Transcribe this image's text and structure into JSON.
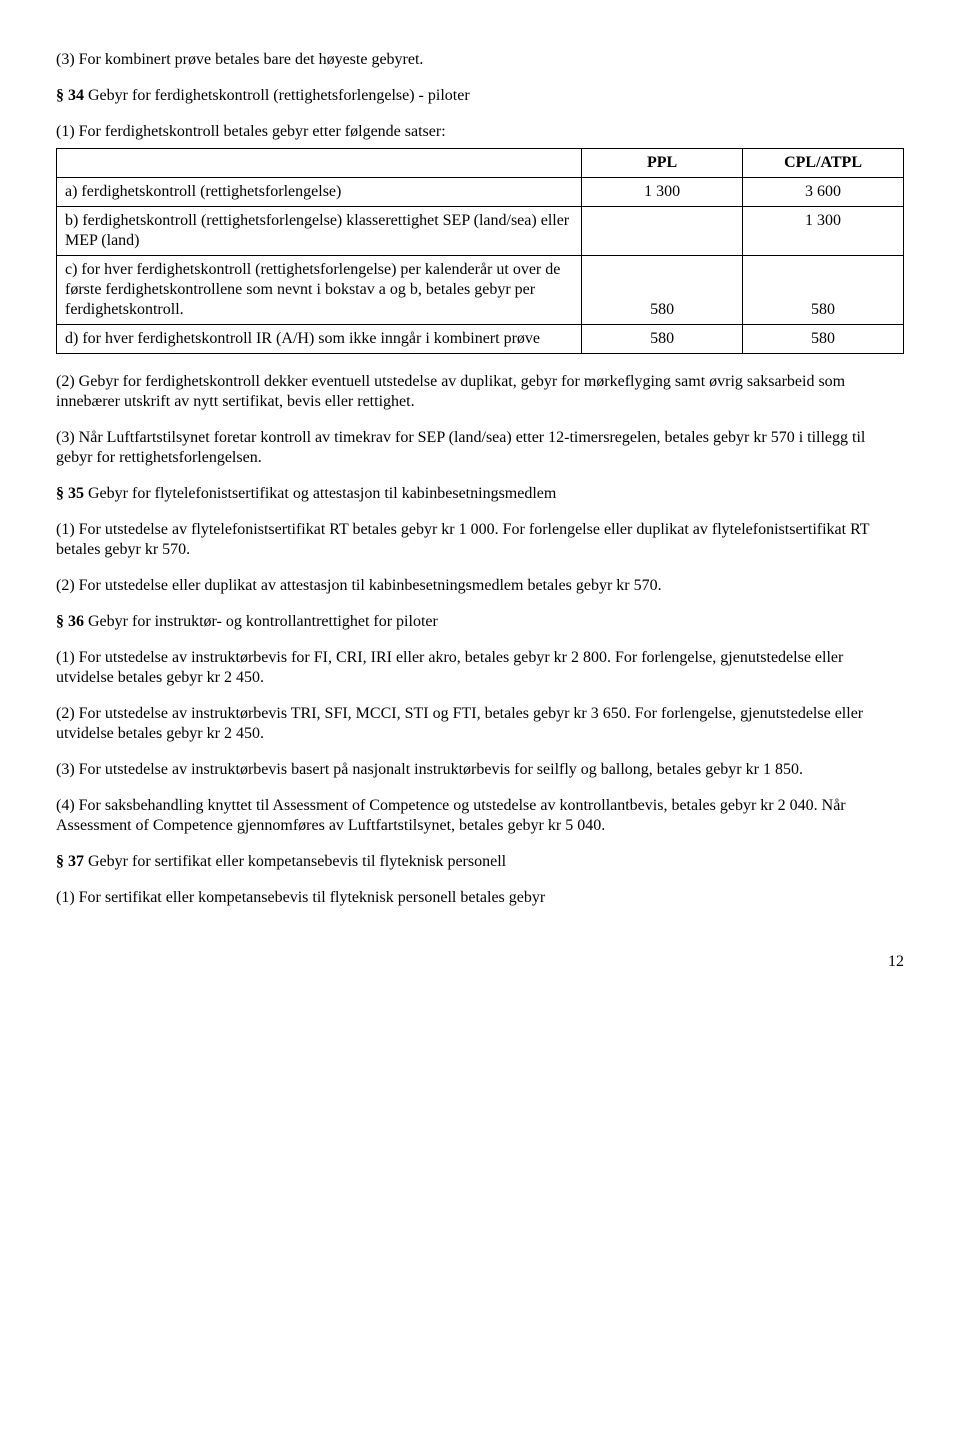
{
  "para_intro_3": "(3) For kombinert prøve betales bare det høyeste gebyret.",
  "s34": {
    "heading_prefix": "§ 34",
    "heading_rest": " Gebyr for ferdighetskontroll (rettighetsforlengelse) - piloter",
    "lead": "(1) For ferdighetskontroll betales gebyr etter følgende satser:",
    "table": {
      "col1_header": "PPL",
      "col2_header": "CPL/ATPL",
      "rows": [
        {
          "label": "a) ferdighetskontroll (rettighetsforlengelse)",
          "ppl": "1 300",
          "cpl": "3 600"
        },
        {
          "label": "b) ferdighetskontroll (rettighetsforlengelse) klasserettighet SEP (land/sea) eller MEP (land)",
          "ppl": "",
          "cpl": "1 300"
        },
        {
          "label": "c) for hver ferdighetskontroll (rettighetsforlengelse) per kalenderår ut over de første ferdighetskontrollene som nevnt i bokstav a og b, betales gebyr per ferdighetskontroll.",
          "ppl": "580",
          "cpl": "580"
        },
        {
          "label": "d) for hver ferdighetskontroll IR (A/H) som ikke inngår i kombinert prøve",
          "ppl": "580",
          "cpl": "580"
        }
      ],
      "col_widths": [
        "62%",
        "19%",
        "19%"
      ]
    },
    "p2": "(2) Gebyr for ferdighetskontroll dekker eventuell utstedelse av duplikat, gebyr for mørkeflyging samt øvrig saksarbeid som innebærer utskrift av nytt sertifikat, bevis eller rettighet.",
    "p3": "(3) Når Luftfartstilsynet foretar kontroll av timekrav for SEP (land/sea) etter 12-timersregelen, betales gebyr kr 570 i tillegg til gebyr for rettighetsforlengelsen."
  },
  "s35": {
    "heading_prefix": "§ 35",
    "heading_rest": " Gebyr for flytelefonistsertifikat og attestasjon til kabinbesetningsmedlem",
    "p1": "(1) For utstedelse av flytelefonistsertifikat RT betales gebyr kr 1 000. For forlengelse eller duplikat av flytelefonistsertifikat RT betales gebyr kr 570.",
    "p2": "(2) For utstedelse eller duplikat av attestasjon til kabinbesetningsmedlem betales gebyr kr 570."
  },
  "s36": {
    "heading_prefix": "§ 36",
    "heading_rest": " Gebyr for instruktør- og kontrollantrettighet for piloter",
    "p1": "(1) For utstedelse av instruktørbevis for FI, CRI, IRI eller akro, betales gebyr kr 2 800. For forlengelse, gjenutstedelse eller utvidelse betales gebyr kr 2 450.",
    "p2": "(2) For utstedelse av instruktørbevis TRI, SFI, MCCI, STI og FTI, betales gebyr kr 3 650. For forlengelse, gjenutstedelse eller utvidelse betales gebyr kr 2 450.",
    "p3": "(3) For utstedelse av instruktørbevis basert på nasjonalt instruktørbevis for seilfly og ballong, betales gebyr kr 1 850.",
    "p4": "(4) For saksbehandling knyttet til Assessment of Competence og utstedelse av kontrollantbevis, betales gebyr kr 2 040. Når Assessment of Competence gjennomføres av Luftfartstilsynet, betales gebyr kr 5 040."
  },
  "s37": {
    "heading_prefix": "§ 37",
    "heading_rest": " Gebyr for sertifikat eller kompetansebevis til flyteknisk personell",
    "p1": "(1) For sertifikat eller kompetansebevis til flyteknisk personell betales gebyr"
  },
  "page_number": "12"
}
